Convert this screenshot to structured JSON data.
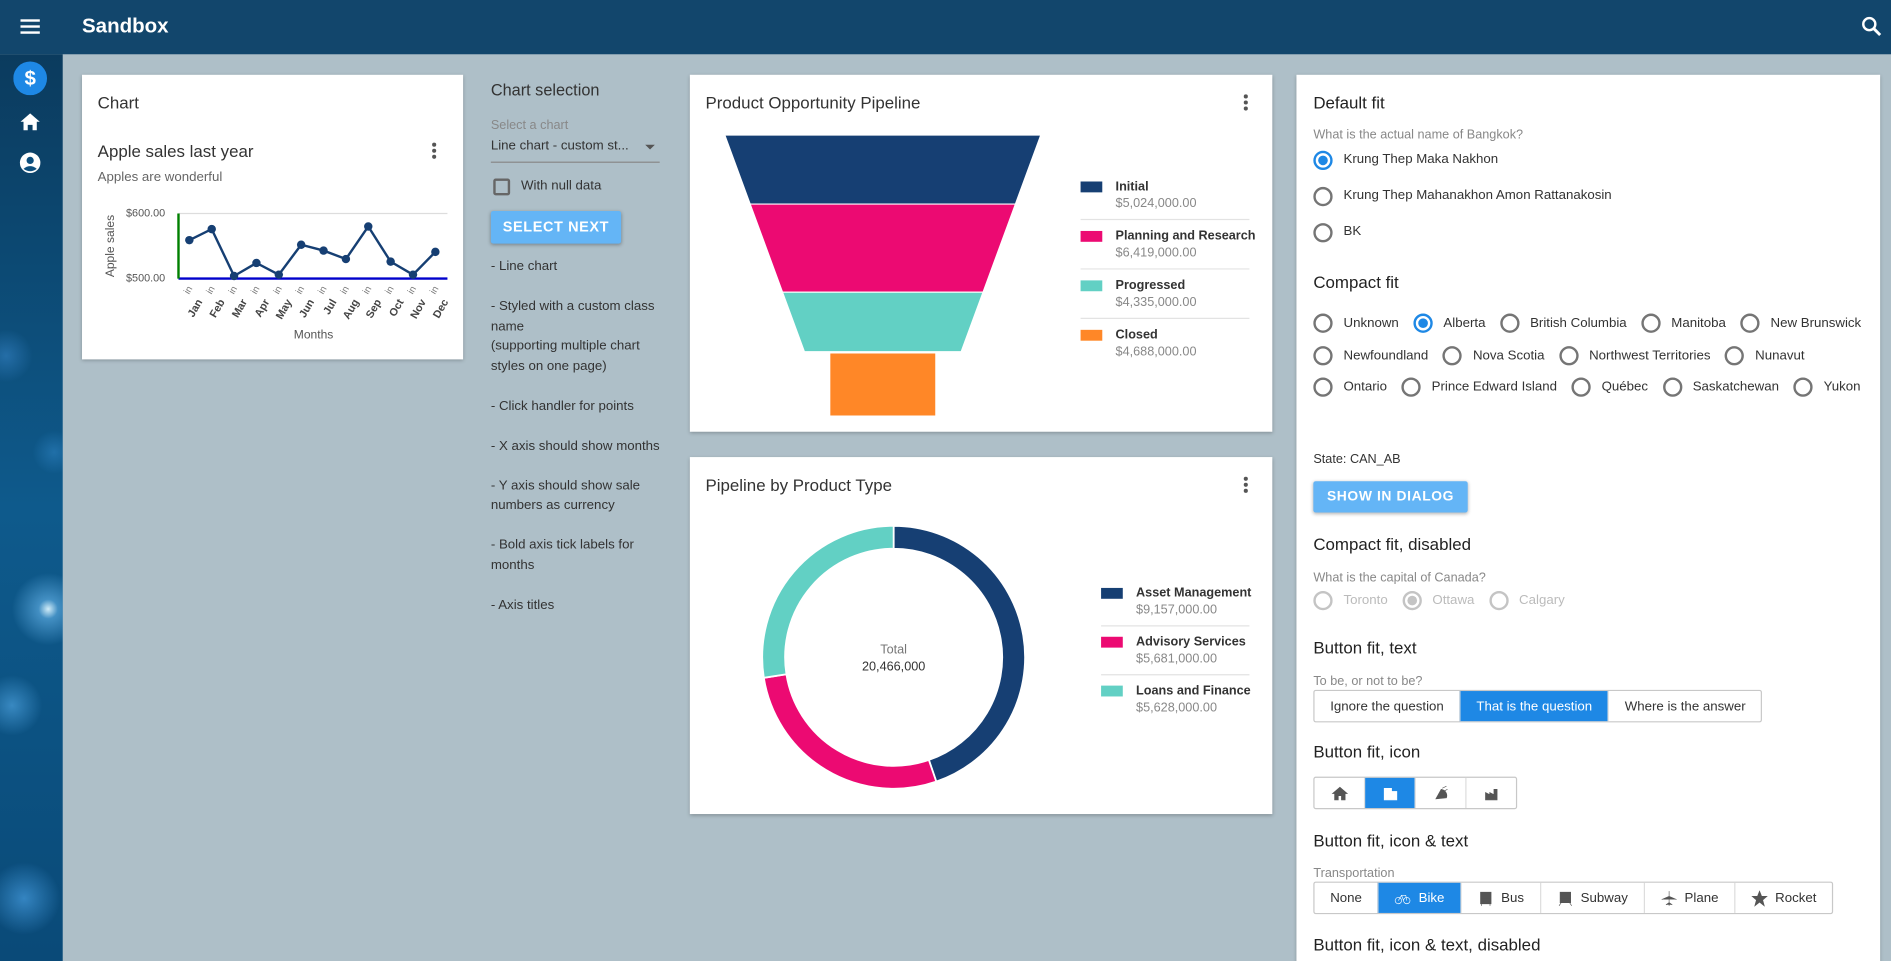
{
  "app_bar": {
    "title": "Sandbox"
  },
  "chart_card": {
    "title": "Chart"
  },
  "chart_data": [
    {
      "type": "line",
      "title": "Apple sales last year",
      "subtitle": "Apples are wonderful",
      "y_label": "Apple sales",
      "x_label": "Months",
      "categories": [
        "Jan",
        "Feb",
        "Mar",
        "Apr",
        "May",
        "Jun",
        "Jul",
        "Aug",
        "Sep",
        "Oct",
        "Nov",
        "Dec"
      ],
      "x_sublabels": [
        "in",
        "in",
        "in",
        "in",
        "in",
        "in",
        "in",
        "in",
        "in",
        "in",
        "in",
        "in"
      ],
      "series": [
        {
          "color": "#163f73",
          "values": [
            559,
            576,
            504,
            524,
            506,
            552,
            543,
            530,
            580,
            526,
            506,
            541
          ]
        }
      ],
      "ylim": [
        500,
        600
      ],
      "yticks": [
        {
          "value": 500,
          "label": "$500.00"
        },
        {
          "value": 600,
          "label": "$600.00"
        }
      ],
      "grid": true,
      "x_axis_color": "#0000cc",
      "y_axis_color": "#008000"
    },
    {
      "type": "funnel",
      "title": "Product Opportunity Pipeline",
      "categories": [
        "Initial",
        "Planning and Research",
        "Progressed",
        "Closed"
      ],
      "values": [
        5024000,
        6419000,
        4335000,
        4688000
      ],
      "value_labels": [
        "$5,024,000.00",
        "$6,419,000.00",
        "$4,335,000.00",
        "$4,688,000.00"
      ],
      "colors": [
        "#163f73",
        "#ec0a72",
        "#62d0c4",
        "#ff8727"
      ]
    },
    {
      "type": "donut",
      "title": "Pipeline by Product Type",
      "center_label": "Total",
      "center_value": "20,466,000",
      "categories": [
        "Asset Management",
        "Advisory Services",
        "Loans and Finance"
      ],
      "values": [
        9157000,
        5681000,
        5628000
      ],
      "value_labels": [
        "$9,157,000.00",
        "$5,681,000.00",
        "$5,628,000.00"
      ],
      "colors": [
        "#163f73",
        "#ec0a72",
        "#62d0c4"
      ]
    }
  ],
  "chart_selection": {
    "title": "Chart selection",
    "select_label": "Select a chart",
    "select_value": "Line chart - custom st...",
    "checkbox_label": "With null data",
    "checked": false,
    "button": "SELECT NEXT",
    "notes": [
      "- Line chart",
      "- Styled with a custom class name\n(supporting multiple chart styles on one page)",
      "- Click handler for points",
      "- X axis should show months",
      "- Y axis should show sale numbers as currency",
      "- Bold axis tick labels for months",
      "- Axis titles"
    ]
  },
  "form": {
    "default_fit": {
      "heading": "Default fit",
      "question": "What is the actual name of Bangkok?",
      "options": [
        "Krung Thep Maka Nakhon",
        "Krung Thep Mahanakhon Amon Rattanakosin",
        "BK"
      ],
      "selected": 0
    },
    "compact_fit": {
      "heading": "Compact fit",
      "options": [
        "Unknown",
        "Alberta",
        "British Columbia",
        "Manitoba",
        "New Brunswick",
        "Newfoundland",
        "Nova Scotia",
        "Northwest Territories",
        "Nunavut",
        "Ontario",
        "Prince Edward Island",
        "Québec",
        "Saskatchewan",
        "Yukon"
      ],
      "selected": 1,
      "state": "State: CAN_AB",
      "button": "SHOW IN DIALOG"
    },
    "compact_fit_disabled": {
      "heading": "Compact fit, disabled",
      "question": "What is the capital of Canada?",
      "options": [
        "Toronto",
        "Ottawa",
        "Calgary"
      ],
      "selected": 1
    },
    "button_fit_text": {
      "heading": "Button fit, text",
      "question": "To be, or not to be?",
      "options": [
        "Ignore the question",
        "That is the question",
        "Where is the answer"
      ],
      "selected": 1
    },
    "button_fit_icon": {
      "heading": "Button fit, icon",
      "selected": 1
    },
    "button_fit_icon_text": {
      "heading": "Button fit, icon & text",
      "label": "Transportation",
      "options": [
        "None",
        "Bike",
        "Bus",
        "Subway",
        "Plane",
        "Rocket"
      ],
      "selected": 1
    },
    "button_fit_icon_text_disabled": {
      "heading": "Button fit, icon & text, disabled"
    }
  }
}
